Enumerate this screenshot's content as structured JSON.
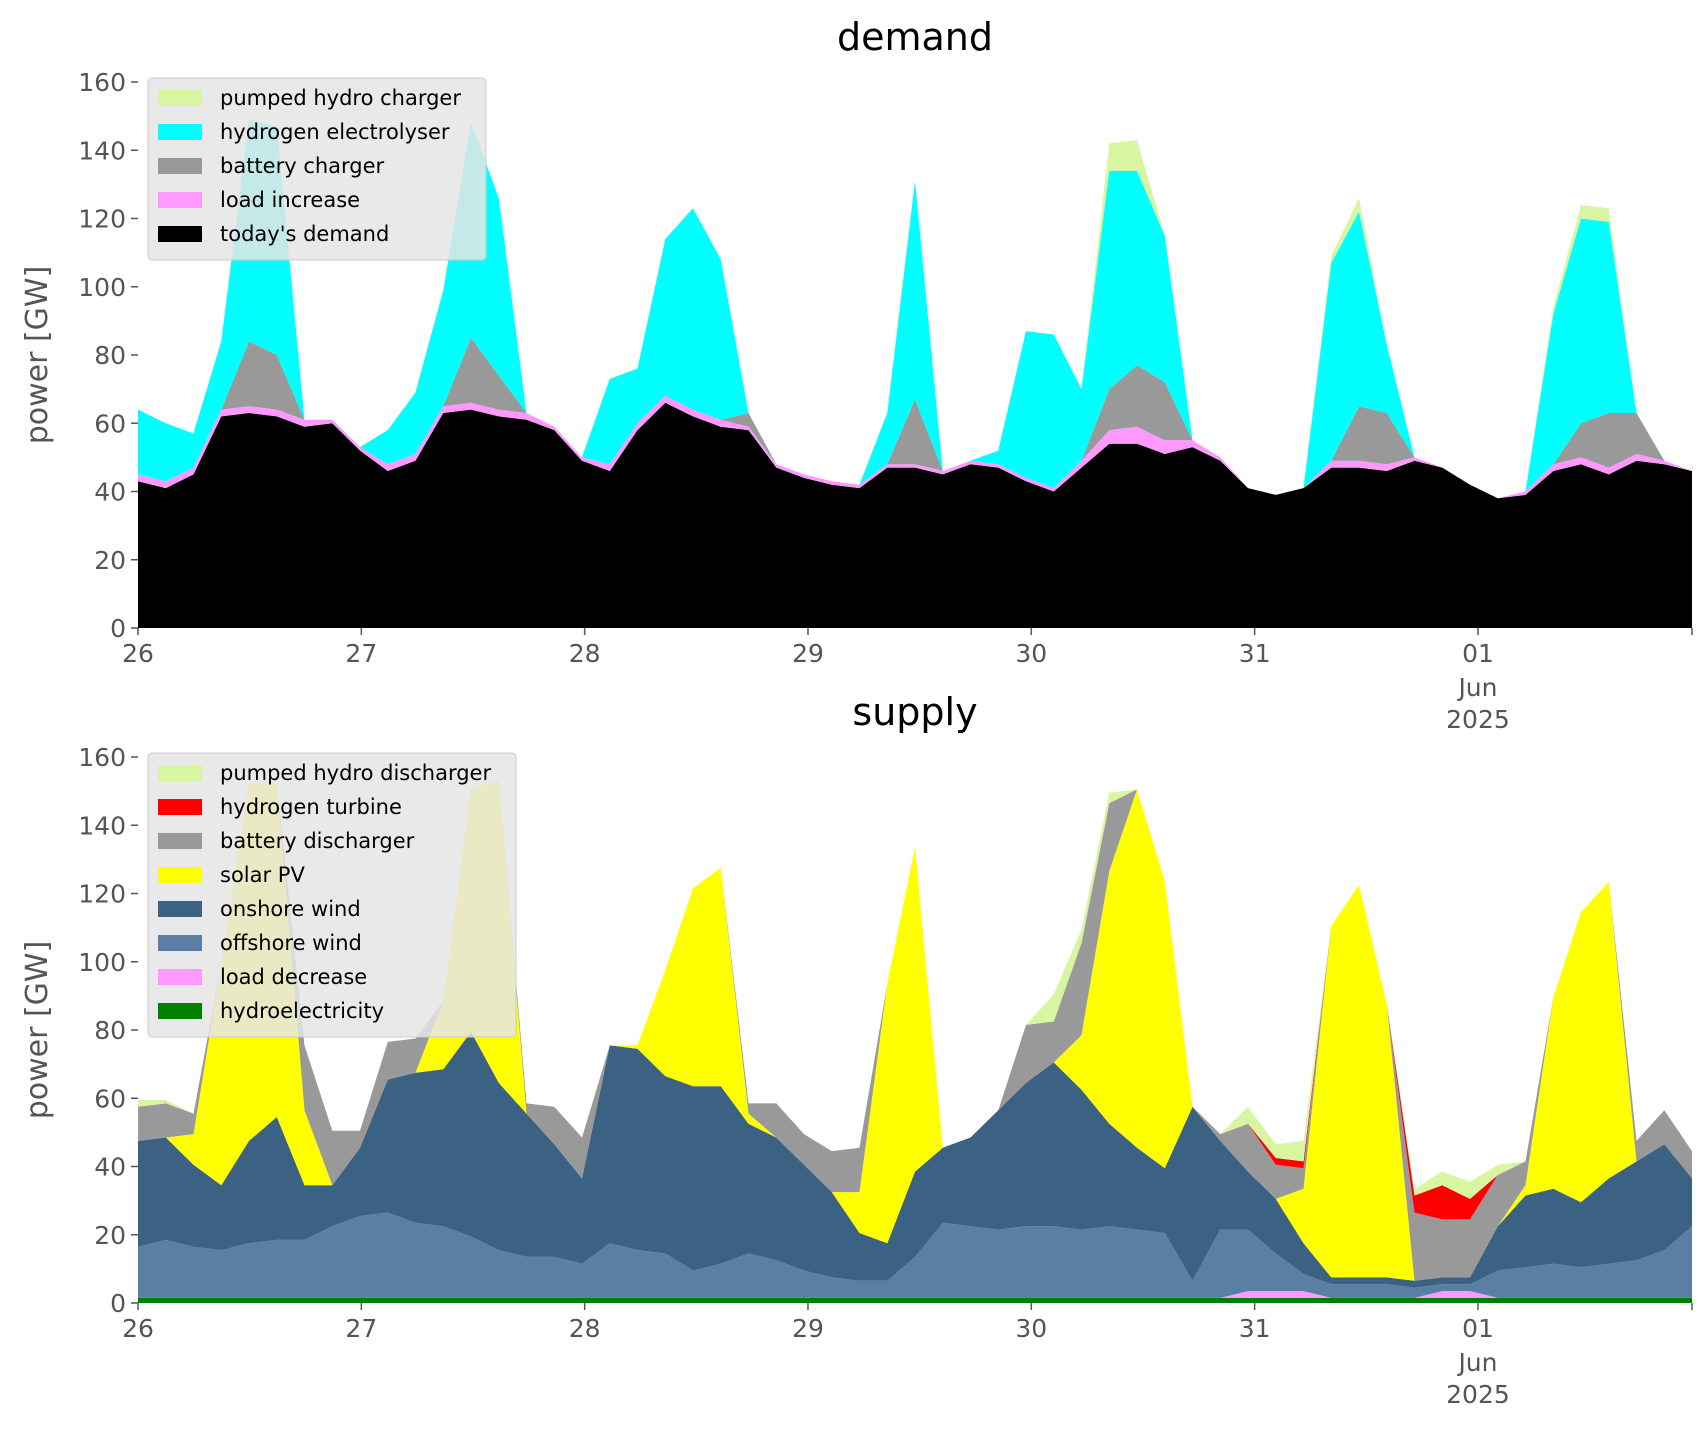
{
  "chart_data": [
    {
      "type": "area",
      "title": "demand",
      "ylabel": "power [GW]",
      "xlabel": "",
      "ylim": [
        0,
        160
      ],
      "yticks": [
        0,
        20,
        40,
        60,
        80,
        100,
        120,
        140,
        160
      ],
      "xlim": [
        "2025-05-26 00:00",
        "2025-06-01 23:00"
      ],
      "xticks": [
        "26",
        "27",
        "28",
        "29",
        "30",
        "31",
        "01"
      ],
      "xtick_sublabel": {
        "month": "Jun",
        "year": "2025"
      },
      "grid": false,
      "legend_position": "top-left",
      "x": [
        "05-26 00h",
        "05-26 03h",
        "05-26 06h",
        "05-26 09h",
        "05-26 12h",
        "05-26 15h",
        "05-26 18h",
        "05-26 21h",
        "05-27 00h",
        "05-27 03h",
        "05-27 06h",
        "05-27 09h",
        "05-27 12h",
        "05-27 15h",
        "05-27 18h",
        "05-27 21h",
        "05-28 00h",
        "05-28 03h",
        "05-28 06h",
        "05-28 09h",
        "05-28 12h",
        "05-28 15h",
        "05-28 18h",
        "05-28 21h",
        "05-29 00h",
        "05-29 03h",
        "05-29 06h",
        "05-29 09h",
        "05-29 12h",
        "05-29 15h",
        "05-29 18h",
        "05-29 21h",
        "05-30 00h",
        "05-30 03h",
        "05-30 06h",
        "05-30 09h",
        "05-30 12h",
        "05-30 15h",
        "05-30 18h",
        "05-30 21h",
        "05-31 00h",
        "05-31 03h",
        "05-31 06h",
        "05-31 09h",
        "05-31 12h",
        "05-31 15h",
        "05-31 18h",
        "05-31 21h",
        "06-01 00h",
        "06-01 03h",
        "06-01 06h",
        "06-01 09h",
        "06-01 12h",
        "06-01 15h",
        "06-01 18h",
        "06-01 21h",
        "06-01 23h"
      ],
      "series": [
        {
          "name": "today's demand",
          "color": "#000000",
          "values": [
            43,
            41,
            45,
            62,
            63,
            62,
            59,
            60,
            52,
            46,
            49,
            63,
            64,
            62,
            61,
            58,
            49,
            46,
            58,
            66,
            62,
            59,
            58,
            47,
            44,
            42,
            41,
            47,
            47,
            45,
            48,
            47,
            43,
            40,
            47,
            54,
            54,
            51,
            53,
            49,
            41,
            39,
            41,
            47,
            47,
            46,
            49,
            47,
            42,
            38,
            39,
            46,
            48,
            45,
            49,
            48,
            46
          ]
        },
        {
          "name": "load increase",
          "color": "#ff99ff",
          "values": [
            2,
            2,
            2,
            2,
            2,
            2,
            2,
            1,
            1,
            2,
            2,
            2,
            2,
            2,
            2,
            1,
            1,
            2,
            2,
            2,
            2,
            2,
            1,
            1,
            1,
            1,
            1,
            1,
            1,
            1,
            1,
            1,
            1,
            1,
            2,
            4,
            5,
            4,
            2,
            1,
            0,
            0,
            0,
            2,
            2,
            2,
            1,
            0,
            0,
            0,
            1,
            2,
            2,
            2,
            2,
            1,
            0
          ]
        },
        {
          "name": "battery charger",
          "color": "#999999",
          "values": [
            0,
            0,
            0,
            0,
            19,
            16,
            0,
            0,
            0,
            0,
            0,
            0,
            19,
            10,
            0,
            0,
            0,
            0,
            0,
            0,
            0,
            0,
            4,
            0,
            0,
            0,
            0,
            0,
            19,
            0,
            0,
            0,
            0,
            0,
            0,
            12,
            18,
            17,
            0,
            0,
            0,
            0,
            0,
            0,
            16,
            15,
            0,
            0,
            0,
            0,
            0,
            0,
            10,
            16,
            12,
            0,
            0
          ]
        },
        {
          "name": "hydrogen electrolyser",
          "color": "#00ffff",
          "values": [
            19,
            17,
            10,
            20,
            65,
            67,
            0,
            0,
            0,
            10,
            18,
            34,
            63,
            52,
            0,
            0,
            0,
            25,
            16,
            46,
            59,
            47,
            0,
            0,
            0,
            0,
            0,
            15,
            64,
            0,
            0,
            4,
            43,
            45,
            21,
            64,
            57,
            43,
            0,
            0,
            0,
            0,
            0,
            58,
            57,
            20,
            0,
            0,
            0,
            0,
            0,
            44,
            60,
            56,
            0,
            0,
            0
          ]
        },
        {
          "name": "pumped hydro charger",
          "color": "#d8f5a2",
          "values": [
            0,
            0,
            0,
            0,
            0,
            0,
            0,
            0,
            0,
            0,
            0,
            0,
            0,
            0,
            0,
            0,
            0,
            0,
            0,
            0,
            0,
            0,
            0,
            0,
            0,
            0,
            0,
            0,
            0,
            0,
            0,
            0,
            0,
            0,
            0,
            8,
            9,
            0,
            0,
            0,
            0,
            0,
            0,
            2,
            4,
            0,
            0,
            0,
            0,
            0,
            0,
            2,
            4,
            4,
            0,
            0,
            0
          ]
        }
      ]
    },
    {
      "type": "area",
      "title": "supply",
      "ylabel": "power [GW]",
      "xlabel": "",
      "ylim": [
        0,
        160
      ],
      "yticks": [
        0,
        20,
        40,
        60,
        80,
        100,
        120,
        140,
        160
      ],
      "xlim": [
        "2025-05-26 00:00",
        "2025-06-01 23:00"
      ],
      "xticks": [
        "26",
        "27",
        "28",
        "29",
        "30",
        "31",
        "01"
      ],
      "xtick_sublabel": {
        "month": "Jun",
        "year": "2025"
      },
      "grid": false,
      "legend_position": "top-left",
      "x": [
        "05-26 00h",
        "05-26 03h",
        "05-26 06h",
        "05-26 09h",
        "05-26 12h",
        "05-26 15h",
        "05-26 18h",
        "05-26 21h",
        "05-27 00h",
        "05-27 03h",
        "05-27 06h",
        "05-27 09h",
        "05-27 12h",
        "05-27 15h",
        "05-27 18h",
        "05-27 21h",
        "05-28 00h",
        "05-28 03h",
        "05-28 06h",
        "05-28 09h",
        "05-28 12h",
        "05-28 15h",
        "05-28 18h",
        "05-28 21h",
        "05-29 00h",
        "05-29 03h",
        "05-29 06h",
        "05-29 09h",
        "05-29 12h",
        "05-29 15h",
        "05-29 18h",
        "05-29 21h",
        "05-30 00h",
        "05-30 03h",
        "05-30 06h",
        "05-30 09h",
        "05-30 12h",
        "05-30 15h",
        "05-30 18h",
        "05-30 21h",
        "05-31 00h",
        "05-31 03h",
        "05-31 06h",
        "05-31 09h",
        "05-31 12h",
        "05-31 15h",
        "05-31 18h",
        "05-31 21h",
        "06-01 00h",
        "06-01 03h",
        "06-01 06h",
        "06-01 09h",
        "06-01 12h",
        "06-01 15h",
        "06-01 18h",
        "06-01 21h",
        "06-01 23h"
      ],
      "series": [
        {
          "name": "hydroelectricity",
          "color": "#008000",
          "values": [
            1.5,
            1.5,
            1.5,
            1.5,
            1.5,
            1.5,
            1.5,
            1.5,
            1.5,
            1.5,
            1.5,
            1.5,
            1.5,
            1.5,
            1.5,
            1.5,
            1.5,
            1.5,
            1.5,
            1.5,
            1.5,
            1.5,
            1.5,
            1.5,
            1.5,
            1.5,
            1.5,
            1.5,
            1.5,
            1.5,
            1.5,
            1.5,
            1.5,
            1.5,
            1.5,
            1.5,
            1.5,
            1.5,
            1.5,
            1.5,
            1.5,
            1.5,
            1.5,
            1.5,
            1.5,
            1.5,
            1.5,
            1.5,
            1.5,
            1.5,
            1.5,
            1.5,
            1.5,
            1.5,
            1.5,
            1.5,
            1.5
          ]
        },
        {
          "name": "load decrease",
          "color": "#ff99ff",
          "values": [
            0,
            0,
            0,
            0,
            0,
            0,
            0,
            0,
            0,
            0,
            0,
            0,
            0,
            0,
            0,
            0,
            0,
            0,
            0,
            0,
            0,
            0,
            0,
            0,
            0,
            0,
            0,
            0,
            0,
            0,
            0,
            0,
            0,
            0,
            0,
            0,
            0,
            0,
            0,
            0,
            2,
            2,
            2,
            0,
            0,
            0,
            0,
            2,
            2,
            0,
            0,
            0,
            0,
            0,
            0,
            0,
            0
          ]
        },
        {
          "name": "offshore wind",
          "color": "#5b7fa3",
          "values": [
            15,
            17,
            15,
            14,
            16,
            17,
            17,
            21,
            24,
            25,
            22,
            21,
            18,
            14,
            12,
            12,
            10,
            16,
            14,
            13,
            8,
            10,
            13,
            11,
            8,
            6,
            5,
            5,
            12,
            22,
            21,
            20,
            21,
            21,
            20,
            21,
            20,
            19,
            5,
            20,
            18,
            11,
            5,
            4,
            4,
            4,
            3,
            2,
            2,
            8,
            9,
            10,
            9,
            10,
            11,
            14,
            21
          ]
        },
        {
          "name": "onshore wind",
          "color": "#3b6183",
          "values": [
            31,
            30,
            24,
            19,
            30,
            36,
            16,
            12,
            20,
            39,
            44,
            46,
            60,
            49,
            42,
            33,
            25,
            58,
            59,
            52,
            54,
            52,
            38,
            36,
            31,
            25,
            14,
            11,
            25,
            22,
            26,
            35,
            42,
            48,
            41,
            30,
            24,
            19,
            51,
            26,
            17,
            16,
            9,
            2,
            2,
            2,
            2,
            2,
            2,
            13,
            21,
            22,
            19,
            25,
            29,
            31,
            14
          ]
        },
        {
          "name": "solar PV",
          "color": "#ffff00",
          "values": [
            0,
            0,
            9,
            65,
            105,
            98,
            22,
            0,
            0,
            0,
            0,
            20,
            71,
            89,
            0,
            0,
            0,
            0,
            1,
            31,
            58,
            64,
            3,
            0,
            0,
            0,
            12,
            76,
            95,
            0,
            0,
            0,
            0,
            0,
            16,
            74,
            105,
            84,
            0,
            0,
            0,
            0,
            16,
            103,
            115,
            80,
            0,
            0,
            0,
            0,
            3,
            56,
            85,
            87,
            0,
            0,
            0
          ]
        },
        {
          "name": "battery discharger",
          "color": "#999999",
          "values": [
            10,
            10,
            6,
            0,
            0,
            0,
            19,
            16,
            5,
            11,
            10,
            0,
            0,
            0,
            3,
            11,
            12,
            0,
            0,
            0,
            0,
            0,
            3,
            10,
            9,
            12,
            13,
            0,
            0,
            0,
            0,
            0,
            17,
            12,
            27,
            20,
            0,
            0,
            0,
            2,
            14,
            10,
            6,
            0,
            0,
            0,
            20,
            17,
            17,
            15,
            7,
            0,
            0,
            0,
            6,
            10,
            8
          ]
        },
        {
          "name": "hydrogen turbine",
          "color": "#ff0000",
          "values": [
            0,
            0,
            0,
            0,
            0,
            0,
            0,
            0,
            0,
            0,
            0,
            0,
            0,
            0,
            0,
            0,
            0,
            0,
            0,
            0,
            0,
            0,
            0,
            0,
            0,
            0,
            0,
            0,
            0,
            0,
            0,
            0,
            0,
            0,
            0,
            0,
            0,
            0,
            0,
            0,
            0,
            2,
            2,
            0,
            0,
            0,
            5,
            10,
            6,
            0,
            0,
            0,
            0,
            0,
            0,
            0,
            0
          ]
        },
        {
          "name": "pumped hydro discharger",
          "color": "#d8f5a2",
          "values": [
            2,
            1,
            0,
            0,
            0,
            0,
            0,
            0,
            0,
            0,
            0,
            0,
            0,
            0,
            0,
            0,
            0,
            0,
            0,
            0,
            0,
            0,
            0,
            0,
            0,
            0,
            0,
            0,
            0,
            0,
            0,
            0,
            0,
            8,
            4,
            3,
            0,
            0,
            0,
            0,
            5,
            4,
            6,
            0,
            0,
            0,
            2,
            4,
            5,
            3,
            0,
            0,
            0,
            0,
            0,
            0,
            0
          ]
        }
      ]
    }
  ]
}
